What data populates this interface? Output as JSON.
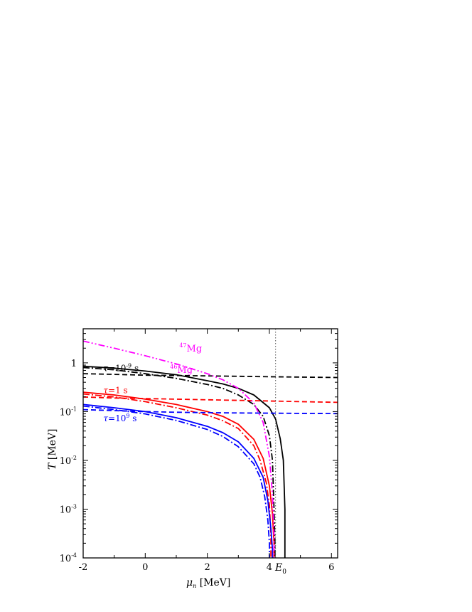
{
  "chart_data": {
    "type": "line",
    "xscale": "linear",
    "yscale": "log",
    "xlim": [
      -2,
      6.2
    ],
    "ylim": [
      0.0001,
      5
    ],
    "xlabel": {
      "symbol": "μ",
      "sub": "n",
      "unit": " [MeV]"
    },
    "ylabel": {
      "symbol": "T",
      "unit": " [MeV]"
    },
    "x_ticks": [
      {
        "v": -2,
        "label": "-2"
      },
      {
        "v": 0,
        "label": "0"
      },
      {
        "v": 2,
        "label": "2"
      },
      {
        "v": 4,
        "label": "4"
      },
      {
        "v": 6,
        "label": "6"
      }
    ],
    "y_ticks": [
      {
        "v": 0.0001,
        "base": "10",
        "exp": "-4"
      },
      {
        "v": 0.001,
        "base": "10",
        "exp": "-3"
      },
      {
        "v": 0.01,
        "base": "10",
        "exp": "-2"
      },
      {
        "v": 0.1,
        "base": "10",
        "exp": "-1"
      },
      {
        "v": 1,
        "base": "1",
        "exp": ""
      }
    ],
    "colors": {
      "black": "#000000",
      "red": "#ff0000",
      "blue": "#0000ff",
      "magenta": "#ff00ff",
      "ref": "#555555"
    },
    "vline": {
      "x": 4.2,
      "label": "E",
      "sub": "0"
    },
    "series": [
      {
        "color": "black",
        "dash": "solid",
        "x": [
          -2,
          -1,
          0,
          1,
          2,
          2.5,
          3,
          3.5,
          4,
          4.2,
          4.35,
          4.45,
          4.5,
          4.5
        ],
        "y": [
          0.85,
          0.78,
          0.68,
          0.57,
          0.43,
          0.37,
          0.3,
          0.22,
          0.12,
          0.07,
          0.028,
          0.01,
          0.001,
          0.0001
        ]
      },
      {
        "color": "black",
        "dash": "dashdot",
        "x": [
          -2,
          -1,
          0,
          1,
          2,
          2.5,
          3,
          3.5,
          3.8,
          4.0,
          4.1,
          4.15,
          4.18,
          4.18
        ],
        "y": [
          0.8,
          0.72,
          0.6,
          0.48,
          0.36,
          0.3,
          0.22,
          0.14,
          0.08,
          0.032,
          0.01,
          0.001,
          0.0002,
          0.0001
        ]
      },
      {
        "color": "black",
        "dash": "dashed",
        "x": [
          -2,
          -1,
          0,
          1,
          2,
          3,
          4,
          5,
          6.2
        ],
        "y": [
          0.6,
          0.58,
          0.56,
          0.55,
          0.54,
          0.53,
          0.52,
          0.51,
          0.5
        ]
      },
      {
        "color": "red",
        "dash": "solid",
        "x": [
          -2,
          -1,
          0,
          1,
          2,
          2.5,
          3,
          3.5,
          3.8,
          4.0,
          4.1,
          4.15,
          4.15
        ],
        "y": [
          0.25,
          0.22,
          0.18,
          0.14,
          0.1,
          0.08,
          0.055,
          0.027,
          0.011,
          0.003,
          0.0008,
          0.0002,
          0.0001
        ]
      },
      {
        "color": "red",
        "dash": "dashdot",
        "x": [
          -2,
          -1,
          0,
          1,
          2,
          2.5,
          3,
          3.5,
          3.7,
          3.9,
          4.0,
          4.05,
          4.05
        ],
        "y": [
          0.23,
          0.2,
          0.16,
          0.12,
          0.085,
          0.065,
          0.045,
          0.02,
          0.01,
          0.0035,
          0.0012,
          0.0003,
          0.0001
        ]
      },
      {
        "color": "red",
        "dash": "dashed",
        "x": [
          -2,
          -1,
          0,
          1,
          2,
          3,
          4,
          5,
          6.2
        ],
        "y": [
          0.2,
          0.19,
          0.185,
          0.18,
          0.175,
          0.17,
          0.165,
          0.16,
          0.155
        ]
      },
      {
        "color": "blue",
        "dash": "solid",
        "x": [
          -2,
          -1,
          0,
          1,
          2,
          2.5,
          3,
          3.5,
          3.8,
          3.95,
          4.05,
          4.1,
          4.1
        ],
        "y": [
          0.14,
          0.12,
          0.1,
          0.075,
          0.05,
          0.037,
          0.024,
          0.011,
          0.0045,
          0.0015,
          0.0004,
          0.00015,
          0.0001
        ]
      },
      {
        "color": "blue",
        "dash": "dashdot",
        "x": [
          -2,
          -1,
          0,
          1,
          2,
          2.5,
          3,
          3.5,
          3.7,
          3.85,
          3.95,
          4.0,
          4.0
        ],
        "y": [
          0.13,
          0.11,
          0.09,
          0.066,
          0.043,
          0.031,
          0.019,
          0.0085,
          0.0045,
          0.0018,
          0.0006,
          0.0002,
          0.0001
        ]
      },
      {
        "color": "blue",
        "dash": "dashed",
        "x": [
          -2,
          -1,
          0,
          1,
          2,
          3,
          4,
          5,
          6.2
        ],
        "y": [
          0.11,
          0.105,
          0.1,
          0.097,
          0.095,
          0.094,
          0.093,
          0.092,
          0.091
        ]
      },
      {
        "color": "magenta",
        "dash": "dashdotdot",
        "x": [
          -2,
          -1,
          0,
          1,
          2,
          2.5,
          3,
          3.5,
          3.8,
          4.0,
          4.1,
          4.15,
          4.15
        ],
        "y": [
          2.8,
          2.0,
          1.4,
          0.95,
          0.6,
          0.45,
          0.3,
          0.15,
          0.06,
          0.012,
          0.002,
          0.0003,
          0.0001
        ]
      }
    ],
    "annotations": [
      {
        "name": "ann-mg47",
        "color": "magenta",
        "x": 1.1,
        "y": 1.7,
        "sup": "47",
        "text": "Mg"
      },
      {
        "name": "ann-mg46",
        "color": "magenta",
        "x": 0.8,
        "y": 0.62,
        "sup": "46",
        "text": "Mg"
      },
      {
        "name": "ann-tau-black",
        "color": "black",
        "x": -1.35,
        "y": 0.68,
        "pre": "τ",
        "text": "=10",
        "sup": "-9",
        "post": " s"
      },
      {
        "name": "ann-tau-red",
        "color": "red",
        "x": -1.35,
        "y": 0.24,
        "pre": "τ",
        "text": "=1 s",
        "sup": "",
        "post": ""
      },
      {
        "name": "ann-tau-blue",
        "color": "blue",
        "x": -1.35,
        "y": 0.063,
        "pre": "τ",
        "text": "=10",
        "sup": "9",
        "post": " s"
      }
    ]
  }
}
